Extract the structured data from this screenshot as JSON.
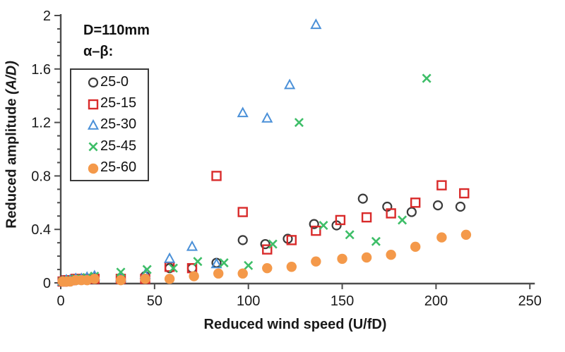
{
  "chart_data": {
    "type": "scatter",
    "title": "",
    "xlabel": "Reduced wind speed",
    "xlabel_units": "(U/fD)",
    "ylabel": "Reduced amplitude",
    "ylabel_units": "(A/D)",
    "xlim": [
      0,
      250
    ],
    "ylim": [
      0,
      2
    ],
    "xticks": [
      0,
      50,
      100,
      150,
      200,
      250
    ],
    "xtick_labels": [
      "0",
      "50",
      "100",
      "150",
      "200",
      "250"
    ],
    "yticks": [
      0,
      0.4,
      0.8,
      1.2,
      1.6,
      2
    ],
    "ytick_labels": [
      "0",
      "0.4",
      "0.8",
      "1.2",
      "1.6",
      "2"
    ],
    "y_minor_step": 0.1,
    "grid": false,
    "legend_position": "upper-left-inside",
    "annotation": {
      "line1": "D=110mm",
      "line2": "α–β:"
    },
    "axis_color": "#4d4d4d",
    "tick_label_color": "#1a1a1a",
    "series": [
      {
        "name": "25-0",
        "marker": "circle-open",
        "color": "#3b3b3b",
        "points": [
          [
            1,
            0.01
          ],
          [
            3,
            0.01
          ],
          [
            5,
            0.02
          ],
          [
            8,
            0.02
          ],
          [
            11,
            0.03
          ],
          [
            14,
            0.03
          ],
          [
            18,
            0.04
          ],
          [
            32,
            0.03
          ],
          [
            45,
            0.05
          ],
          [
            58,
            0.11
          ],
          [
            70,
            0.11
          ],
          [
            83,
            0.15
          ],
          [
            97,
            0.32
          ],
          [
            109,
            0.29
          ],
          [
            121,
            0.33
          ],
          [
            135,
            0.44
          ],
          [
            147,
            0.43
          ],
          [
            161,
            0.63
          ],
          [
            174,
            0.57
          ],
          [
            187,
            0.53
          ],
          [
            201,
            0.58
          ],
          [
            213,
            0.57
          ]
        ]
      },
      {
        "name": "25-15",
        "marker": "square-open",
        "color": "#d92b2b",
        "points": [
          [
            1,
            0.01
          ],
          [
            3,
            0.02
          ],
          [
            5,
            0.02
          ],
          [
            8,
            0.03
          ],
          [
            11,
            0.03
          ],
          [
            14,
            0.03
          ],
          [
            18,
            0.03
          ],
          [
            32,
            0.03
          ],
          [
            45,
            0.03
          ],
          [
            58,
            0.12
          ],
          [
            70,
            0.11
          ],
          [
            83,
            0.8
          ],
          [
            97,
            0.53
          ],
          [
            110,
            0.25
          ],
          [
            123,
            0.32
          ],
          [
            136,
            0.39
          ],
          [
            149,
            0.47
          ],
          [
            163,
            0.49
          ],
          [
            176,
            0.52
          ],
          [
            189,
            0.6
          ],
          [
            203,
            0.73
          ],
          [
            215,
            0.67
          ]
        ]
      },
      {
        "name": "25-30",
        "marker": "triangle-open",
        "color": "#4a90d8",
        "points": [
          [
            1,
            0.01
          ],
          [
            3,
            0.02
          ],
          [
            5,
            0.02
          ],
          [
            8,
            0.03
          ],
          [
            11,
            0.03
          ],
          [
            14,
            0.04
          ],
          [
            18,
            0.05
          ],
          [
            32,
            0.04
          ],
          [
            45,
            0.06
          ],
          [
            58,
            0.18
          ],
          [
            70,
            0.27
          ],
          [
            83,
            0.14
          ],
          [
            97,
            1.27
          ],
          [
            110,
            1.23
          ],
          [
            122,
            1.48
          ],
          [
            136,
            1.93
          ]
        ]
      },
      {
        "name": "25-45",
        "marker": "x",
        "color": "#3ebe68",
        "points": [
          [
            1,
            0.01
          ],
          [
            3,
            0.02
          ],
          [
            5,
            0.02
          ],
          [
            8,
            0.03
          ],
          [
            11,
            0.03
          ],
          [
            14,
            0.04
          ],
          [
            18,
            0.05
          ],
          [
            32,
            0.08
          ],
          [
            46,
            0.1
          ],
          [
            60,
            0.11
          ],
          [
            73,
            0.16
          ],
          [
            87,
            0.15
          ],
          [
            100,
            0.13
          ],
          [
            113,
            0.29
          ],
          [
            127,
            1.2
          ],
          [
            140,
            0.43
          ],
          [
            154,
            0.36
          ],
          [
            168,
            0.31
          ],
          [
            182,
            0.47
          ],
          [
            195,
            1.53
          ]
        ]
      },
      {
        "name": "25-60",
        "marker": "circle-filled",
        "color": "#f4994a",
        "points": [
          [
            1,
            0.01
          ],
          [
            3,
            0.01
          ],
          [
            5,
            0.01
          ],
          [
            8,
            0.02
          ],
          [
            11,
            0.02
          ],
          [
            14,
            0.02
          ],
          [
            18,
            0.03
          ],
          [
            32,
            0.02
          ],
          [
            45,
            0.03
          ],
          [
            58,
            0.03
          ],
          [
            71,
            0.05
          ],
          [
            84,
            0.07
          ],
          [
            97,
            0.07
          ],
          [
            110,
            0.11
          ],
          [
            123,
            0.12
          ],
          [
            136,
            0.16
          ],
          [
            150,
            0.18
          ],
          [
            163,
            0.19
          ],
          [
            176,
            0.21
          ],
          [
            189,
            0.27
          ],
          [
            203,
            0.34
          ],
          [
            216,
            0.36
          ]
        ]
      }
    ]
  }
}
